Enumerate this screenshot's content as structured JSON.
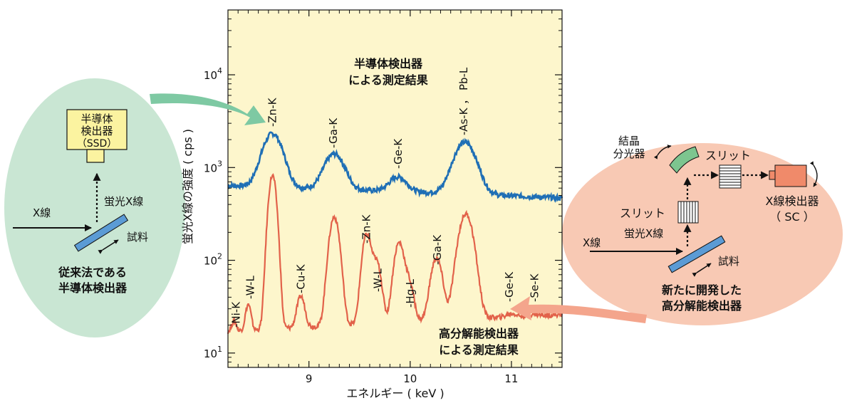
{
  "chart_data": {
    "type": "line",
    "xlabel": "エネルギー ( keV )",
    "ylabel": "蛍光X線の強度 ( cps )",
    "xlim": [
      8.2,
      11.5
    ],
    "ylim": [
      7,
      50000
    ],
    "y_scale": "log",
    "x_ticks": [
      {
        "v": 9,
        "label": "9"
      },
      {
        "v": 10,
        "label": "10"
      },
      {
        "v": 11,
        "label": "11"
      }
    ],
    "y_ticks": [
      {
        "v": 10,
        "base": "10",
        "exp": "1"
      },
      {
        "v": 100,
        "base": "10",
        "exp": "2"
      },
      {
        "v": 1000,
        "base": "10",
        "exp": "3"
      },
      {
        "v": 10000,
        "base": "10",
        "exp": "4"
      }
    ],
    "background_color": "#fdf6cc",
    "series": [
      {
        "color": "#1f6fb5",
        "baseline": 640,
        "baseline_end": 470,
        "peaks": [
          {
            "x": 8.64,
            "y": 2350,
            "w": 0.09
          },
          {
            "x": 9.25,
            "y": 1460,
            "w": 0.09
          },
          {
            "x": 9.88,
            "y": 880,
            "w": 0.08
          },
          {
            "x": 10.54,
            "y": 1990,
            "w": 0.1
          }
        ],
        "annotation": "半導体検出器\nによる測定結果"
      },
      {
        "color": "#e2624a",
        "baseline": 17,
        "baseline_end": 26,
        "peaks": [
          {
            "x": 8.26,
            "y": 22,
            "w": 0.022
          },
          {
            "x": 8.4,
            "y": 33,
            "w": 0.025
          },
          {
            "x": 8.64,
            "y": 820,
            "w": 0.035
          },
          {
            "x": 8.92,
            "y": 39,
            "w": 0.035
          },
          {
            "x": 9.25,
            "y": 290,
            "w": 0.045
          },
          {
            "x": 9.57,
            "y": 185,
            "w": 0.04
          },
          {
            "x": 9.67,
            "y": 90,
            "w": 0.04
          },
          {
            "x": 9.89,
            "y": 150,
            "w": 0.045
          },
          {
            "x": 9.99,
            "y": 50,
            "w": 0.04
          },
          {
            "x": 10.26,
            "y": 100,
            "w": 0.05
          },
          {
            "x": 10.55,
            "y": 310,
            "w": 0.065
          },
          {
            "x": 11.0,
            "y": 19,
            "w": 0.045
          },
          {
            "x": 11.22,
            "y": 18,
            "w": 0.045
          }
        ],
        "annotation": "高分解能検出器\nによる測定結果"
      }
    ],
    "peak_labels": {
      "upper": [
        {
          "x": 8.64,
          "label": "-Zn-K"
        },
        {
          "x": 9.24,
          "label": "-Ga-K"
        },
        {
          "x": 9.88,
          "label": "-Ge-K"
        },
        {
          "x": 10.53,
          "label": "-As-K ， Pb-L"
        }
      ],
      "lower": [
        {
          "x": 8.28,
          "label": "-Ni-K"
        },
        {
          "x": 8.42,
          "label": "-W-L"
        },
        {
          "x": 8.92,
          "label": "-Cu-K"
        },
        {
          "x": 9.57,
          "label": "-Zn-K"
        },
        {
          "x": 9.68,
          "label": "-W-L"
        },
        {
          "x": 10.0,
          "label": "-Hg-L"
        },
        {
          "x": 10.27,
          "label": "-Ga-K"
        },
        {
          "x": 10.98,
          "label": "-Ge-K"
        },
        {
          "x": 11.23,
          "label": "-Se-K"
        }
      ]
    }
  },
  "left_panel": {
    "detector_label": [
      "半導体",
      "検出器",
      "（SSD）"
    ],
    "fluor_label": "蛍光X線",
    "xray_label": "X線",
    "sample_label": "試料",
    "caption": [
      "従来法である",
      "半導体検出器"
    ],
    "fill_color": "#c9e6d3",
    "caption_color": "#1a9a4a"
  },
  "right_panel": {
    "crystal_label": [
      "結晶",
      "分光器"
    ],
    "slit_top_label": "スリット",
    "slit_mid_label": "スリット",
    "detector_label": [
      "X線検出器",
      "（ SC ）"
    ],
    "xray_label": "X線",
    "fluor_label": "蛍光X線",
    "sample_label": "試料",
    "caption": [
      "新たに開発した",
      "高分解能検出器"
    ],
    "fill_color": "#f8c9b4",
    "caption_color": "#e8603c"
  }
}
